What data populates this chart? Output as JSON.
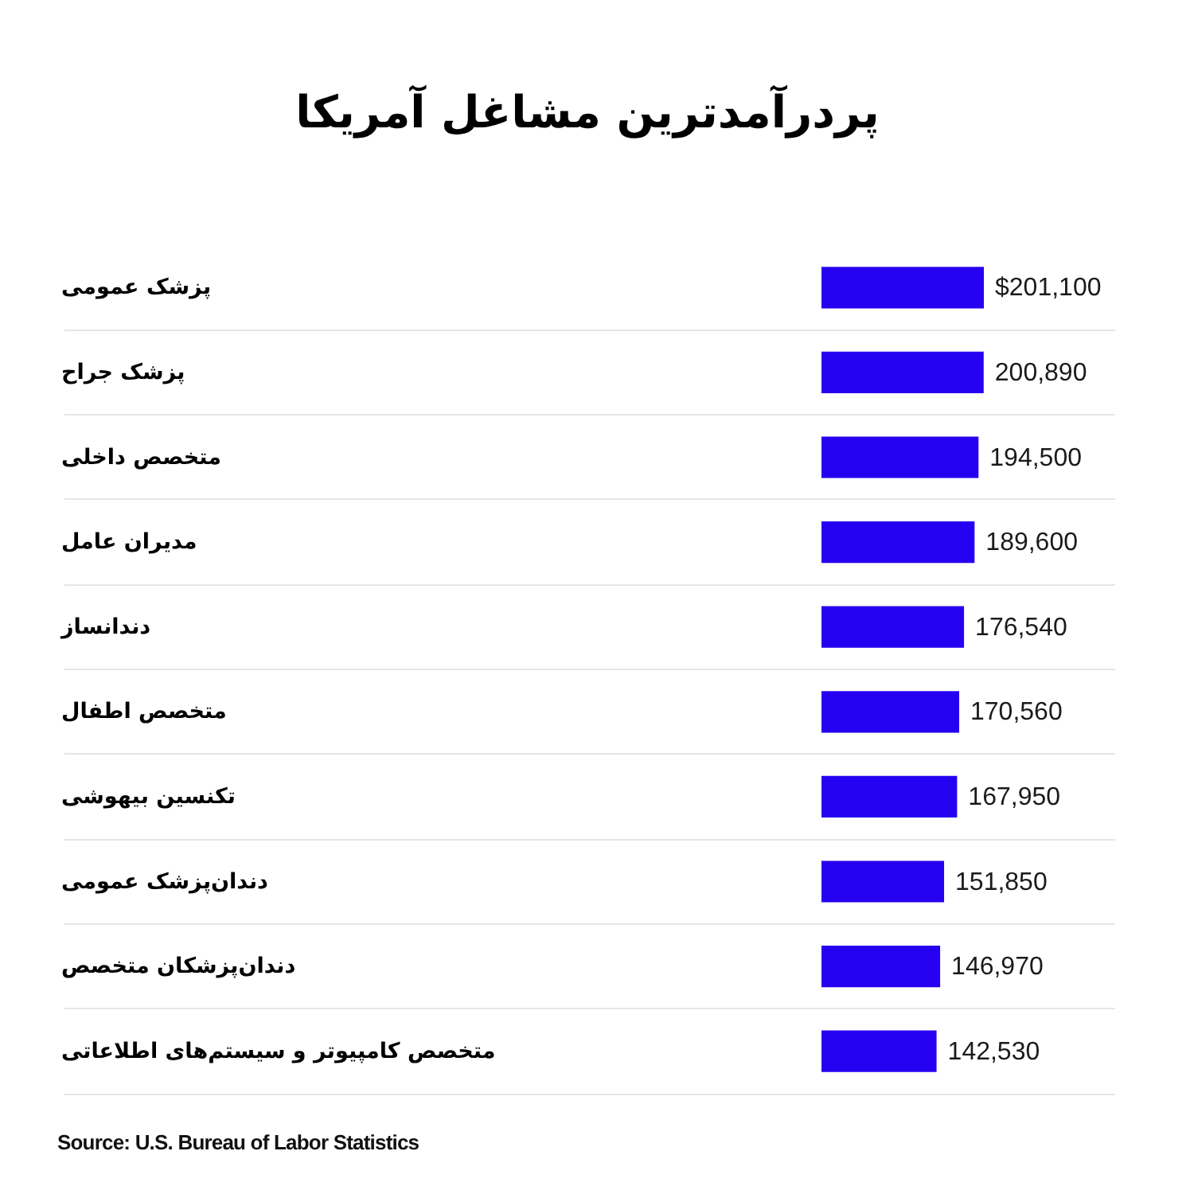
{
  "chart_data": {
    "type": "bar",
    "orientation": "horizontal",
    "title": "پردرآمدترین مشاغل آمریکا",
    "categories": [
      "پزشک عمومی",
      "پزشک جراح",
      "متخصص داخلی",
      "مدیران عامل",
      "دندانساز",
      "متخصص اطفال",
      "تکنسین بیهوشی",
      "دندان‌پزشک عمومی",
      "دندان‌پزشکان متخصص",
      "متخصص کامپیوتر و سیستم‌های اطلاعاتی"
    ],
    "values": [
      201100,
      200890,
      194500,
      189600,
      176540,
      170560,
      167950,
      151850,
      146970,
      142530
    ],
    "value_labels": [
      "$201,100",
      "200,890",
      "194,500",
      "189,600",
      "176,540",
      "170,560",
      "167,950",
      "151,850",
      "146,970",
      "142,530"
    ],
    "color": "#2600f0",
    "grid": "y",
    "annotations": [
      "Source: U.S. Bureau of Labor Statistics"
    ]
  }
}
